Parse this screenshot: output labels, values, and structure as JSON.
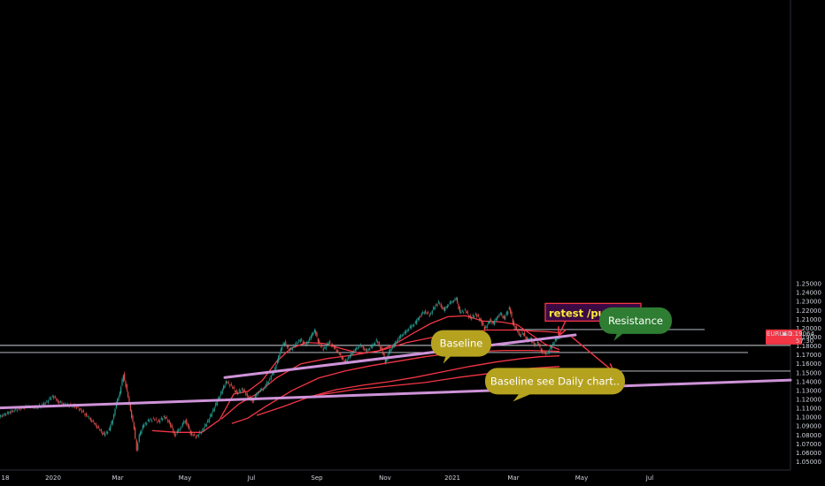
{
  "chart_data": {
    "type": "candlestick",
    "symbol": "EURUSD",
    "price": "1.19064",
    "countdown": "57:30",
    "x_ticks": [
      "18",
      "2020",
      "Mar",
      "May",
      "Jul",
      "Sep",
      "Nov",
      "2021",
      "Mar",
      "May",
      "Jul"
    ],
    "y_ticks": [
      "1.25000",
      "1.24000",
      "1.23000",
      "1.22000",
      "1.21000",
      "1.20000",
      "1.19000",
      "1.18000",
      "1.17000",
      "1.16000",
      "1.15000",
      "1.14000",
      "1.13000",
      "1.12000",
      "1.11000",
      "1.10000",
      "1.09000",
      "1.08000",
      "1.07000",
      "1.06000",
      "1.05000"
    ],
    "ylim": [
      1.05,
      1.25
    ],
    "colors": {
      "background": "#000000",
      "up": "#26a69a",
      "down": "#ef5350",
      "ma": "#f23645",
      "trendline": "#ce93d8",
      "level": "#d1d4dc",
      "price_tag": "#f23645"
    },
    "series_points": [
      [
        0,
        1.1005
      ],
      [
        12,
        1.106
      ],
      [
        22,
        1.1095
      ],
      [
        32,
        1.112
      ],
      [
        42,
        1.111
      ],
      [
        52,
        1.116
      ],
      [
        60,
        1.124
      ],
      [
        66,
        1.118
      ],
      [
        74,
        1.114
      ],
      [
        84,
        1.113
      ],
      [
        92,
        1.108
      ],
      [
        100,
        1.1
      ],
      [
        106,
        1.094
      ],
      [
        112,
        1.087
      ],
      [
        118,
        1.08
      ],
      [
        124,
        1.086
      ],
      [
        128,
        1.098
      ],
      [
        132,
        1.115
      ],
      [
        136,
        1.128
      ],
      [
        140,
        1.148
      ],
      [
        144,
        1.129
      ],
      [
        148,
        1.108
      ],
      [
        152,
        1.087
      ],
      [
        155,
        1.064
      ],
      [
        158,
        1.079
      ],
      [
        162,
        1.09
      ],
      [
        168,
        1.096
      ],
      [
        174,
        1.098
      ],
      [
        180,
        1.095
      ],
      [
        186,
        1.101
      ],
      [
        192,
        1.094
      ],
      [
        198,
        1.08
      ],
      [
        204,
        1.088
      ],
      [
        210,
        1.097
      ],
      [
        216,
        1.082
      ],
      [
        222,
        1.078
      ],
      [
        228,
        1.084
      ],
      [
        234,
        1.093
      ],
      [
        240,
        1.105
      ],
      [
        246,
        1.118
      ],
      [
        252,
        1.131
      ],
      [
        256,
        1.14
      ],
      [
        262,
        1.135
      ],
      [
        268,
        1.127
      ],
      [
        274,
        1.132
      ],
      [
        280,
        1.124
      ],
      [
        286,
        1.118
      ],
      [
        292,
        1.129
      ],
      [
        298,
        1.132
      ],
      [
        304,
        1.141
      ],
      [
        310,
        1.152
      ],
      [
        314,
        1.163
      ],
      [
        318,
        1.177
      ],
      [
        322,
        1.184
      ],
      [
        328,
        1.175
      ],
      [
        334,
        1.182
      ],
      [
        340,
        1.187
      ],
      [
        346,
        1.181
      ],
      [
        352,
        1.191
      ],
      [
        356,
        1.198
      ],
      [
        360,
        1.185
      ],
      [
        366,
        1.176
      ],
      [
        372,
        1.184
      ],
      [
        378,
        1.178
      ],
      [
        384,
        1.171
      ],
      [
        390,
        1.162
      ],
      [
        396,
        1.169
      ],
      [
        402,
        1.176
      ],
      [
        408,
        1.181
      ],
      [
        414,
        1.174
      ],
      [
        420,
        1.179
      ],
      [
        426,
        1.186
      ],
      [
        432,
        1.175
      ],
      [
        436,
        1.162
      ],
      [
        440,
        1.173
      ],
      [
        446,
        1.182
      ],
      [
        452,
        1.19
      ],
      [
        458,
        1.195
      ],
      [
        464,
        1.201
      ],
      [
        470,
        1.206
      ],
      [
        474,
        1.213
      ],
      [
        480,
        1.219
      ],
      [
        486,
        1.215
      ],
      [
        492,
        1.225
      ],
      [
        496,
        1.229
      ],
      [
        502,
        1.22
      ],
      [
        506,
        1.226
      ],
      [
        512,
        1.231
      ],
      [
        516,
        1.233
      ],
      [
        520,
        1.218
      ],
      [
        526,
        1.22
      ],
      [
        532,
        1.211
      ],
      [
        538,
        1.216
      ],
      [
        544,
        1.208
      ],
      [
        548,
        1.199
      ],
      [
        554,
        1.209
      ],
      [
        558,
        1.205
      ],
      [
        562,
        1.213
      ],
      [
        566,
        1.216
      ],
      [
        570,
        1.211
      ],
      [
        576,
        1.223
      ],
      [
        580,
        1.206
      ],
      [
        584,
        1.198
      ],
      [
        588,
        1.192
      ],
      [
        592,
        1.194
      ],
      [
        596,
        1.186
      ],
      [
        600,
        1.189
      ],
      [
        604,
        1.18
      ],
      [
        608,
        1.184
      ],
      [
        612,
        1.175
      ],
      [
        616,
        1.171
      ],
      [
        620,
        1.173
      ],
      [
        624,
        1.181
      ],
      [
        628,
        1.187
      ],
      [
        632,
        1.19
      ],
      [
        634,
        1.191
      ]
    ],
    "horizontal_levels": [
      {
        "price": 1.1985,
        "from": 580,
        "to": 796
      },
      {
        "price": 1.1807,
        "from": 0,
        "to": 893
      },
      {
        "price": 1.1727,
        "from": 0,
        "to": 845
      },
      {
        "price": 1.1518,
        "from": 634,
        "to": 893
      }
    ],
    "moving_averages": [
      [
        [
          172,
          1.085
        ],
        [
          200,
          1.083
        ],
        [
          228,
          1.083
        ],
        [
          248,
          1.097
        ],
        [
          264,
          1.126
        ],
        [
          280,
          1.129
        ],
        [
          296,
          1.141
        ],
        [
          312,
          1.162
        ],
        [
          328,
          1.177
        ],
        [
          346,
          1.184
        ],
        [
          366,
          1.183
        ],
        [
          386,
          1.177
        ],
        [
          406,
          1.172
        ],
        [
          426,
          1.174
        ],
        [
          446,
          1.182
        ],
        [
          466,
          1.194
        ],
        [
          486,
          1.205
        ],
        [
          506,
          1.213
        ],
        [
          526,
          1.214
        ],
        [
          546,
          1.208
        ],
        [
          566,
          1.207
        ],
        [
          584,
          1.204
        ],
        [
          600,
          1.193
        ],
        [
          616,
          1.182
        ],
        [
          632,
          1.176
        ]
      ],
      [
        [
          250,
          1.098
        ],
        [
          270,
          1.115
        ],
        [
          290,
          1.126
        ],
        [
          312,
          1.144
        ],
        [
          340,
          1.16
        ],
        [
          370,
          1.166
        ],
        [
          400,
          1.17
        ],
        [
          430,
          1.175
        ],
        [
          460,
          1.184
        ],
        [
          490,
          1.19
        ],
        [
          520,
          1.194
        ],
        [
          550,
          1.198
        ],
        [
          580,
          1.198
        ],
        [
          600,
          1.197
        ],
        [
          620,
          1.196
        ],
        [
          632,
          1.195
        ]
      ],
      [
        [
          262,
          1.093
        ],
        [
          280,
          1.099
        ],
        [
          300,
          1.112
        ],
        [
          330,
          1.13
        ],
        [
          360,
          1.144
        ],
        [
          390,
          1.152
        ],
        [
          420,
          1.158
        ],
        [
          450,
          1.163
        ],
        [
          480,
          1.168
        ],
        [
          510,
          1.172
        ],
        [
          540,
          1.174
        ],
        [
          570,
          1.175
        ],
        [
          600,
          1.175
        ],
        [
          632,
          1.174
        ]
      ],
      [
        [
          290,
          1.102
        ],
        [
          320,
          1.112
        ],
        [
          350,
          1.123
        ],
        [
          380,
          1.131
        ],
        [
          410,
          1.136
        ],
        [
          440,
          1.14
        ],
        [
          470,
          1.145
        ],
        [
          500,
          1.151
        ],
        [
          530,
          1.157
        ],
        [
          560,
          1.162
        ],
        [
          590,
          1.166
        ],
        [
          610,
          1.168
        ],
        [
          632,
          1.169
        ]
      ],
      [
        [
          360,
          1.125
        ],
        [
          400,
          1.131
        ],
        [
          440,
          1.135
        ],
        [
          480,
          1.139
        ],
        [
          520,
          1.145
        ],
        [
          560,
          1.15
        ],
        [
          600,
          1.155
        ],
        [
          632,
          1.157
        ]
      ]
    ],
    "trendlines": [
      [
        [
          0,
          1.1105
        ],
        [
          893,
          1.1418
        ]
      ],
      [
        [
          254,
          1.1445
        ],
        [
          650,
          1.1925
        ]
      ]
    ],
    "annotations": [
      {
        "label": "retest /pullback",
        "role": "box",
        "x": 618,
        "y": 1.212
      },
      {
        "label": "Resistance",
        "role": "callout",
        "x": 718,
        "y": 1.2085,
        "color": "#2e7d32"
      },
      {
        "label": "Baseline",
        "role": "callout",
        "x": 521,
        "y": 1.183,
        "color": "#b5a21f"
      },
      {
        "label": "Baseline see Daily chart..",
        "role": "callout",
        "x": 627,
        "y": 1.1405,
        "color": "#b5a21f"
      }
    ],
    "arrows": [
      [
        [
          640,
          1.2105
        ],
        [
          632,
          1.1935
        ]
      ],
      [
        [
          645,
          1.191
        ],
        [
          692,
          1.152
        ]
      ]
    ]
  }
}
